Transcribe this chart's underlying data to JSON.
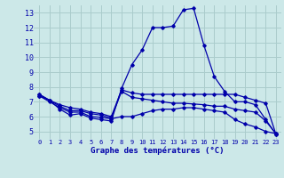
{
  "title": "Graphe des températures (°C)",
  "background_color": "#cce8e8",
  "grid_color": "#aacccc",
  "line_color": "#0000aa",
  "xlim": [
    -0.5,
    23.5
  ],
  "ylim": [
    4.5,
    13.5
  ],
  "x_ticks": [
    0,
    1,
    2,
    3,
    4,
    5,
    6,
    7,
    8,
    9,
    10,
    11,
    12,
    13,
    14,
    15,
    16,
    17,
    18,
    19,
    20,
    21,
    22,
    23
  ],
  "y_ticks": [
    5,
    6,
    7,
    8,
    9,
    10,
    11,
    12,
    13
  ],
  "series": [
    {
      "x": [
        0,
        1,
        2,
        3,
        4,
        5,
        6,
        7,
        8,
        9,
        10,
        11,
        12,
        13,
        14,
        15,
        16,
        17,
        18,
        19,
        20,
        21,
        22,
        23
      ],
      "y": [
        7.5,
        7.1,
        6.5,
        6.1,
        6.2,
        5.9,
        5.8,
        5.7,
        7.9,
        9.5,
        10.5,
        12.0,
        12.0,
        12.1,
        13.2,
        13.3,
        10.8,
        8.7,
        7.7,
        7.0,
        7.0,
        6.8,
        5.8,
        4.8
      ]
    },
    {
      "x": [
        0,
        1,
        2,
        3,
        4,
        5,
        6,
        7,
        8,
        9,
        10,
        11,
        12,
        13,
        14,
        15,
        16,
        17,
        18,
        19,
        20,
        21,
        22,
        23
      ],
      "y": [
        7.5,
        7.1,
        6.8,
        6.6,
        6.5,
        6.3,
        6.2,
        6.0,
        7.8,
        7.6,
        7.5,
        7.5,
        7.5,
        7.5,
        7.5,
        7.5,
        7.5,
        7.5,
        7.5,
        7.5,
        7.3,
        7.1,
        6.9,
        4.8
      ]
    },
    {
      "x": [
        0,
        1,
        2,
        3,
        4,
        5,
        6,
        7,
        8,
        9,
        10,
        11,
        12,
        13,
        14,
        15,
        16,
        17,
        18,
        19,
        20,
        21,
        22,
        23
      ],
      "y": [
        7.4,
        7.1,
        6.7,
        6.4,
        6.4,
        6.2,
        6.1,
        5.9,
        7.7,
        7.3,
        7.2,
        7.1,
        7.0,
        6.9,
        6.9,
        6.85,
        6.8,
        6.7,
        6.7,
        6.5,
        6.4,
        6.3,
        5.7,
        4.85
      ]
    },
    {
      "x": [
        0,
        1,
        2,
        3,
        4,
        5,
        6,
        7,
        8,
        9,
        10,
        11,
        12,
        13,
        14,
        15,
        16,
        17,
        18,
        19,
        20,
        21,
        22,
        23
      ],
      "y": [
        7.4,
        7.0,
        6.6,
        6.3,
        6.3,
        6.0,
        5.95,
        5.85,
        6.0,
        6.0,
        6.2,
        6.4,
        6.5,
        6.5,
        6.6,
        6.6,
        6.5,
        6.4,
        6.3,
        5.8,
        5.5,
        5.3,
        5.0,
        4.85
      ]
    }
  ]
}
